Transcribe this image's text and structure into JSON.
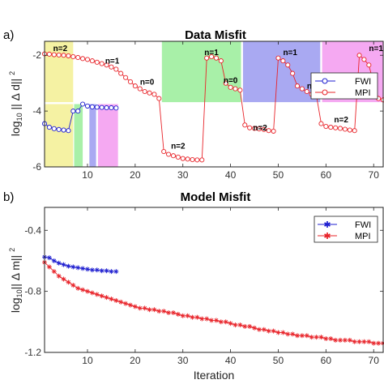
{
  "chart_data": [
    {
      "panel": "a)",
      "type": "line",
      "title": "Data Misfit",
      "xlabel": "",
      "ylabel": "log 10 || Δ d|| 2",
      "xlim": [
        1,
        72
      ],
      "ylim": [
        -6,
        -1.5
      ],
      "xticks": [
        10,
        20,
        30,
        40,
        50,
        60,
        70
      ],
      "yticks": [
        -6,
        -4,
        -2
      ],
      "legend_position": "top-right",
      "legend": [
        "FWI",
        "MPI"
      ],
      "shaded_regions": [
        {
          "x0": 1,
          "x1": 7,
          "y0": -3.68,
          "y1": -1.5,
          "color": "#f5f2a3"
        },
        {
          "x0": 1,
          "x1": 7,
          "y0": -6,
          "y1": -3.75,
          "color": "#f5f2a3"
        },
        {
          "x0": 25.6,
          "x1": 42.2,
          "y0": -3.68,
          "y1": -1.5,
          "color": "#a8f0a8"
        },
        {
          "x0": 7.2,
          "x1": 9,
          "y0": -6,
          "y1": -3.75,
          "color": "#a8f0a8"
        },
        {
          "x0": 42.6,
          "x1": 58.8,
          "y0": -3.68,
          "y1": -1.5,
          "color": "#a9a9f2"
        },
        {
          "x0": 10.4,
          "x1": 11.8,
          "y0": -6,
          "y1": -3.75,
          "color": "#a9a9f2"
        },
        {
          "x0": 59.2,
          "x1": 72,
          "y0": -3.68,
          "y1": -1.5,
          "color": "#f5a9f2"
        },
        {
          "x0": 12.2,
          "x1": 16.4,
          "y0": -6,
          "y1": -3.75,
          "color": "#f5a9f2"
        }
      ],
      "annotations": [
        {
          "text": "n=2",
          "x": 4.3,
          "y": -1.85
        },
        {
          "text": "n=1",
          "x": 15.2,
          "y": -2.3
        },
        {
          "text": "n=0",
          "x": 22.5,
          "y": -3.05
        },
        {
          "text": "n=2",
          "x": 29,
          "y": -5.35
        },
        {
          "text": "n=1",
          "x": 36,
          "y": -2.0
        },
        {
          "text": "n=0",
          "x": 40,
          "y": -3.0
        },
        {
          "text": "n=2",
          "x": 46.2,
          "y": -4.7
        },
        {
          "text": "n=1",
          "x": 52.5,
          "y": -2.0
        },
        {
          "text": "n=0",
          "x": 57.5,
          "y": -3.2
        },
        {
          "text": "n=2",
          "x": 63.2,
          "y": -4.4
        },
        {
          "text": "n=1",
          "x": 70.5,
          "y": -1.85
        },
        {
          "text": "n=0",
          "x": 68,
          "y": -3.3
        }
      ],
      "series": [
        {
          "name": "FWI",
          "color": "#1f1fd0",
          "marker": "circle",
          "x": [
            1,
            2,
            3,
            4,
            5,
            6,
            7,
            8,
            9,
            10,
            11,
            12,
            13,
            14,
            15,
            16
          ],
          "y": [
            -4.45,
            -4.58,
            -4.63,
            -4.66,
            -4.68,
            -4.7,
            -4.0,
            -4.0,
            -3.75,
            -3.82,
            -3.85,
            -3.86,
            -3.87,
            -3.88,
            -3.88,
            -3.89
          ]
        },
        {
          "name": "MPI",
          "color": "#e8242a",
          "marker": "circle",
          "x": [
            1,
            2,
            3,
            4,
            5,
            6,
            7,
            8,
            9,
            10,
            11,
            12,
            13,
            14,
            15,
            16,
            17,
            18,
            19,
            20,
            21,
            22,
            23,
            24,
            25,
            26,
            27,
            28,
            29,
            30,
            31,
            32,
            33,
            34,
            35,
            36,
            37,
            38,
            39,
            40,
            41,
            42,
            43,
            44,
            45,
            46,
            47,
            48,
            49,
            50,
            51,
            52,
            53,
            54,
            55,
            56,
            57,
            58,
            59,
            60,
            61,
            62,
            63,
            64,
            65,
            66,
            67,
            68,
            69,
            70,
            71,
            72
          ],
          "y": [
            -1.95,
            -1.96,
            -1.98,
            -1.99,
            -2.0,
            -2.02,
            -2.05,
            -2.08,
            -2.12,
            -2.15,
            -2.2,
            -2.25,
            -2.3,
            -2.35,
            -2.42,
            -2.5,
            -2.65,
            -2.8,
            -2.95,
            -3.1,
            -3.2,
            -3.3,
            -3.35,
            -3.4,
            -3.55,
            -5.45,
            -5.55,
            -5.6,
            -5.65,
            -5.7,
            -5.72,
            -5.74,
            -5.75,
            -5.75,
            -2.1,
            -2.05,
            -2.1,
            -2.2,
            -3.0,
            -3.15,
            -3.2,
            -3.25,
            -4.5,
            -4.6,
            -4.62,
            -4.64,
            -4.66,
            -4.7,
            -4.72,
            -2.1,
            -2.2,
            -2.35,
            -2.65,
            -3.1,
            -3.2,
            -3.3,
            -3.4,
            -3.45,
            -4.45,
            -4.55,
            -4.58,
            -4.6,
            -4.62,
            -4.65,
            -4.68,
            -4.7,
            -2.0,
            -2.15,
            -2.35,
            -3.0,
            -3.55,
            -3.6
          ]
        }
      ]
    },
    {
      "panel": "b)",
      "type": "line",
      "title": "Model Misfit",
      "xlabel": "Iteration",
      "ylabel": "log 10 || Δ m|| 2",
      "xlim": [
        1,
        72
      ],
      "ylim": [
        -1.2,
        -0.25
      ],
      "xticks": [
        10,
        20,
        30,
        40,
        50,
        60,
        70
      ],
      "yticks": [
        -1.2,
        -0.8,
        -0.4
      ],
      "legend_position": "top-right",
      "legend": [
        "FWI",
        "MPI"
      ],
      "series": [
        {
          "name": "FWI",
          "color": "#1f1fd0",
          "marker": "asterisk",
          "x": [
            1,
            2,
            3,
            4,
            5,
            6,
            7,
            8,
            9,
            10,
            11,
            12,
            13,
            14,
            15,
            16
          ],
          "y": [
            -0.575,
            -0.58,
            -0.6,
            -0.615,
            -0.625,
            -0.635,
            -0.64,
            -0.645,
            -0.65,
            -0.655,
            -0.66,
            -0.66,
            -0.665,
            -0.665,
            -0.67,
            -0.67
          ]
        },
        {
          "name": "MPI",
          "color": "#e8242a",
          "marker": "asterisk",
          "x": [
            1,
            2,
            3,
            4,
            5,
            6,
            7,
            8,
            9,
            10,
            11,
            12,
            13,
            14,
            15,
            16,
            17,
            18,
            19,
            20,
            21,
            22,
            23,
            24,
            25,
            26,
            27,
            28,
            29,
            30,
            31,
            32,
            33,
            34,
            35,
            36,
            37,
            38,
            39,
            40,
            41,
            42,
            43,
            44,
            45,
            46,
            47,
            48,
            49,
            50,
            51,
            52,
            53,
            54,
            55,
            56,
            57,
            58,
            59,
            60,
            61,
            62,
            63,
            64,
            65,
            66,
            67,
            68,
            69,
            70,
            71,
            72
          ],
          "y": [
            -0.61,
            -0.64,
            -0.67,
            -0.7,
            -0.72,
            -0.74,
            -0.76,
            -0.78,
            -0.79,
            -0.8,
            -0.81,
            -0.82,
            -0.83,
            -0.84,
            -0.85,
            -0.86,
            -0.87,
            -0.88,
            -0.89,
            -0.9,
            -0.91,
            -0.91,
            -0.92,
            -0.92,
            -0.93,
            -0.93,
            -0.94,
            -0.94,
            -0.95,
            -0.96,
            -0.96,
            -0.97,
            -0.97,
            -0.98,
            -0.98,
            -0.99,
            -0.99,
            -1.0,
            -1.0,
            -1.01,
            -1.02,
            -1.02,
            -1.03,
            -1.03,
            -1.04,
            -1.05,
            -1.05,
            -1.06,
            -1.06,
            -1.07,
            -1.07,
            -1.08,
            -1.08,
            -1.09,
            -1.09,
            -1.09,
            -1.1,
            -1.1,
            -1.1,
            -1.11,
            -1.11,
            -1.12,
            -1.12,
            -1.12,
            -1.12,
            -1.13,
            -1.13,
            -1.13,
            -1.13,
            -1.14,
            -1.14,
            -1.14
          ]
        }
      ]
    }
  ]
}
